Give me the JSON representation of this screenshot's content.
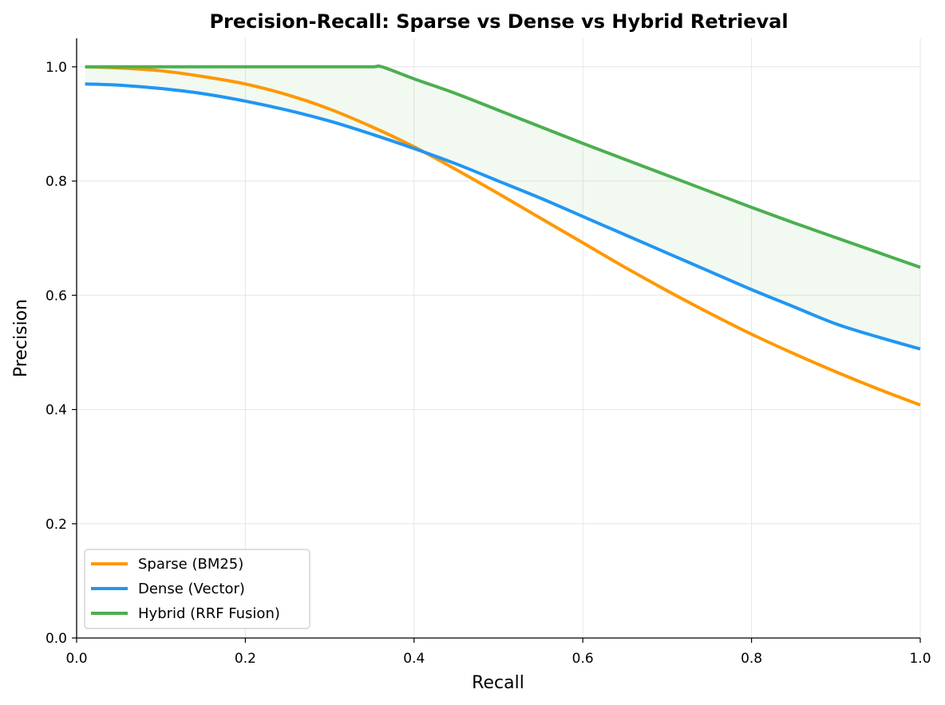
{
  "chart_data": {
    "type": "line",
    "title": "Precision-Recall: Sparse vs Dense vs Hybrid Retrieval",
    "xlabel": "Recall",
    "ylabel": "Precision",
    "xlim": [
      0.0,
      1.0
    ],
    "ylim": [
      0.0,
      1.05
    ],
    "xticks": [
      "0.0",
      "0.2",
      "0.4",
      "0.6",
      "0.8",
      "1.0"
    ],
    "yticks": [
      "0.0",
      "0.2",
      "0.4",
      "0.6",
      "0.8",
      "1.0"
    ],
    "grid": true,
    "legend_position": "lower-left",
    "fill_between": {
      "upper": "Hybrid (RRF Fusion)",
      "lower": "Dense (Vector)",
      "color": "#4caf50",
      "opacity": 0.08
    },
    "series": [
      {
        "name": "Sparse (BM25)",
        "color": "#ff9800",
        "x": [
          0.01,
          0.05,
          0.1,
          0.15,
          0.2,
          0.25,
          0.3,
          0.35,
          0.4,
          0.45,
          0.5,
          0.55,
          0.6,
          0.65,
          0.7,
          0.75,
          0.8,
          0.85,
          0.9,
          0.95,
          1.0
        ],
        "y": [
          1.0,
          0.998,
          0.993,
          0.983,
          0.97,
          0.951,
          0.926,
          0.895,
          0.86,
          0.82,
          0.778,
          0.735,
          0.692,
          0.649,
          0.608,
          0.569,
          0.532,
          0.498,
          0.466,
          0.436,
          0.408
        ]
      },
      {
        "name": "Dense (Vector)",
        "color": "#2196f3",
        "x": [
          0.01,
          0.05,
          0.1,
          0.15,
          0.2,
          0.25,
          0.3,
          0.35,
          0.4,
          0.45,
          0.5,
          0.55,
          0.6,
          0.65,
          0.7,
          0.75,
          0.8,
          0.85,
          0.9,
          0.95,
          1.0
        ],
        "y": [
          0.97,
          0.968,
          0.962,
          0.953,
          0.94,
          0.924,
          0.905,
          0.882,
          0.857,
          0.83,
          0.8,
          0.77,
          0.738,
          0.706,
          0.674,
          0.642,
          0.61,
          0.58,
          0.55,
          0.527,
          0.506
        ]
      },
      {
        "name": "Hybrid (RRF Fusion)",
        "color": "#4caf50",
        "x": [
          0.01,
          0.05,
          0.1,
          0.15,
          0.2,
          0.25,
          0.3,
          0.35,
          0.362,
          0.4,
          0.45,
          0.5,
          0.55,
          0.6,
          0.65,
          0.7,
          0.75,
          0.8,
          0.85,
          0.9,
          0.95,
          1.0
        ],
        "y": [
          1.0,
          1.0,
          1.0,
          1.0,
          1.0,
          1.0,
          1.0,
          1.0,
          1.0,
          0.979,
          0.953,
          0.924,
          0.895,
          0.866,
          0.838,
          0.81,
          0.782,
          0.754,
          0.727,
          0.701,
          0.675,
          0.649
        ]
      }
    ]
  }
}
